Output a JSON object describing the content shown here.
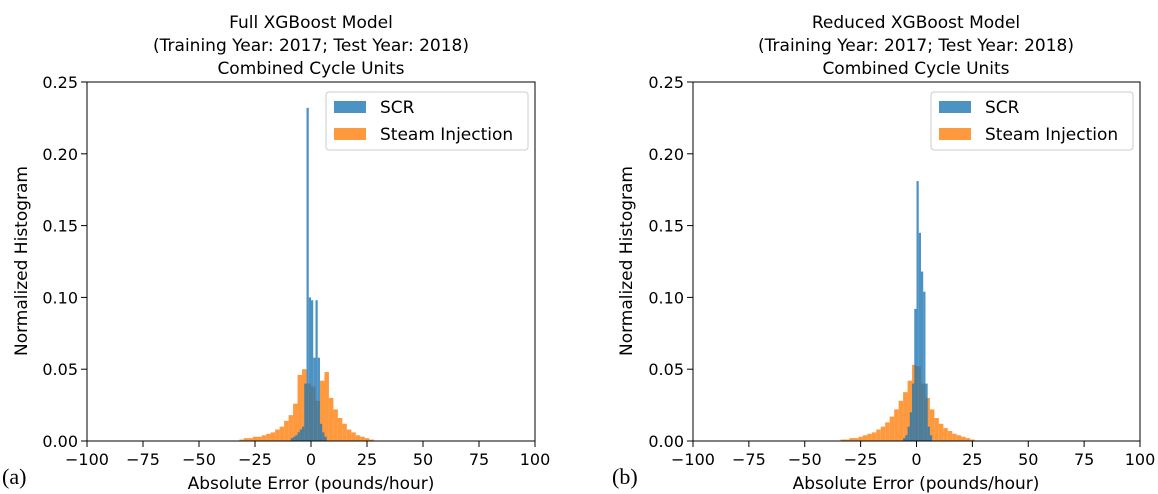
{
  "chart_data": [
    {
      "type": "bar",
      "panel_label": "(a)",
      "title": [
        "Full XGBoost Model",
        "(Training Year: 2017; Test Year: 2018)",
        "Combined Cycle Units"
      ],
      "xlabel": "Absolute Error (pounds/hour)",
      "ylabel": "Normalized Histogram",
      "xlim": [
        -100,
        100
      ],
      "ylim": [
        0,
        0.25
      ],
      "xticks": [
        "−100",
        "−75",
        "−50",
        "−25",
        "0",
        "25",
        "50",
        "75",
        "100"
      ],
      "yticks": [
        "0.00",
        "0.05",
        "0.10",
        "0.15",
        "0.20",
        "0.25"
      ],
      "legend_position": "top-right",
      "series": [
        {
          "name": "SCR",
          "color": "#1f77b4",
          "bins": [
            [
              -9,
              0.002
            ],
            [
              -8,
              0.003
            ],
            [
              -7,
              0.004
            ],
            [
              -6,
              0.006
            ],
            [
              -5,
              0.008
            ],
            [
              -4,
              0.01
            ],
            [
              -3,
              0.04
            ],
            [
              -2,
              0.232
            ],
            [
              -1,
              0.1
            ],
            [
              0,
              0.098
            ],
            [
              1,
              0.058
            ],
            [
              2,
              0.098
            ],
            [
              3,
              0.058
            ],
            [
              4,
              0.012
            ],
            [
              5,
              0.006
            ],
            [
              6,
              0.003
            ]
          ]
        },
        {
          "name": "Steam Injection",
          "color": "#ff7f0e",
          "bins": [
            [
              -32,
              0.001
            ],
            [
              -30,
              0.002
            ],
            [
              -28,
              0.002
            ],
            [
              -26,
              0.003
            ],
            [
              -24,
              0.003
            ],
            [
              -22,
              0.004
            ],
            [
              -20,
              0.005
            ],
            [
              -18,
              0.006
            ],
            [
              -16,
              0.008
            ],
            [
              -14,
              0.01
            ],
            [
              -12,
              0.014
            ],
            [
              -10,
              0.018
            ],
            [
              -8,
              0.026
            ],
            [
              -6,
              0.046
            ],
            [
              -4,
              0.05
            ],
            [
              -2,
              0.04
            ],
            [
              0,
              0.038
            ],
            [
              2,
              0.028
            ],
            [
              4,
              0.042
            ],
            [
              6,
              0.048
            ],
            [
              8,
              0.03
            ],
            [
              10,
              0.022
            ],
            [
              12,
              0.016
            ],
            [
              14,
              0.012
            ],
            [
              16,
              0.008
            ],
            [
              18,
              0.006
            ],
            [
              20,
              0.004
            ],
            [
              22,
              0.003
            ],
            [
              24,
              0.002
            ],
            [
              26,
              0.001
            ]
          ]
        }
      ]
    },
    {
      "type": "bar",
      "panel_label": "(b)",
      "title": [
        "Reduced XGBoost Model",
        "(Training Year: 2017; Test Year: 2018)",
        "Combined Cycle Units"
      ],
      "xlabel": "Absolute Error (pounds/hour)",
      "ylabel": "Normalized Histogram",
      "xlim": [
        -100,
        100
      ],
      "ylim": [
        0,
        0.25
      ],
      "xticks": [
        "−100",
        "−75",
        "−50",
        "−25",
        "0",
        "25",
        "50",
        "75",
        "100"
      ],
      "yticks": [
        "0.00",
        "0.05",
        "0.10",
        "0.15",
        "0.20",
        "0.25"
      ],
      "legend_position": "top-right",
      "series": [
        {
          "name": "SCR",
          "color": "#1f77b4",
          "bins": [
            [
              -6,
              0.002
            ],
            [
              -5,
              0.004
            ],
            [
              -4,
              0.01
            ],
            [
              -3,
              0.02
            ],
            [
              -2,
              0.04
            ],
            [
              -1,
              0.092
            ],
            [
              0,
              0.181
            ],
            [
              1,
              0.145
            ],
            [
              2,
              0.118
            ],
            [
              3,
              0.104
            ],
            [
              4,
              0.04
            ],
            [
              5,
              0.01
            ],
            [
              6,
              0.004
            ]
          ]
        },
        {
          "name": "Steam Injection",
          "color": "#ff7f0e",
          "bins": [
            [
              -34,
              0.001
            ],
            [
              -32,
              0.001
            ],
            [
              -30,
              0.002
            ],
            [
              -28,
              0.002
            ],
            [
              -26,
              0.003
            ],
            [
              -24,
              0.004
            ],
            [
              -22,
              0.005
            ],
            [
              -20,
              0.006
            ],
            [
              -18,
              0.008
            ],
            [
              -16,
              0.01
            ],
            [
              -14,
              0.013
            ],
            [
              -12,
              0.017
            ],
            [
              -10,
              0.022
            ],
            [
              -8,
              0.028
            ],
            [
              -6,
              0.034
            ],
            [
              -4,
              0.042
            ],
            [
              -2,
              0.053
            ],
            [
              0,
              0.052
            ],
            [
              2,
              0.04
            ],
            [
              4,
              0.03
            ],
            [
              6,
              0.022
            ],
            [
              8,
              0.016
            ],
            [
              10,
              0.012
            ],
            [
              12,
              0.009
            ],
            [
              14,
              0.007
            ],
            [
              16,
              0.005
            ],
            [
              18,
              0.004
            ],
            [
              20,
              0.003
            ],
            [
              22,
              0.002
            ],
            [
              24,
              0.001
            ]
          ]
        }
      ]
    }
  ]
}
